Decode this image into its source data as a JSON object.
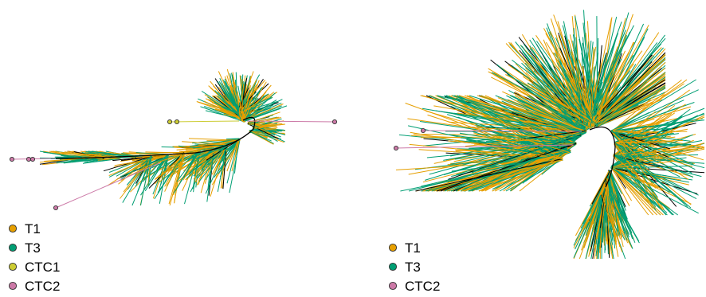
{
  "colors": {
    "T1": "#E69F00",
    "T3": "#009E73",
    "CTC1": "#CCCC33",
    "CTC2": "#CC79A7",
    "trunk": "#000000",
    "marker_outline": "#333333"
  },
  "panels": [
    {
      "name": "left-tree",
      "legend": [
        {
          "key": "T1",
          "label": "T1"
        },
        {
          "key": "T3",
          "label": "T3"
        },
        {
          "key": "CTC1",
          "label": "CTC1"
        },
        {
          "key": "CTC2",
          "label": "CTC2"
        }
      ]
    },
    {
      "name": "right-tree",
      "legend": [
        {
          "key": "T1",
          "label": "T1"
        },
        {
          "key": "T3",
          "label": "T3"
        },
        {
          "key": "CTC2",
          "label": "CTC2"
        }
      ]
    }
  ]
}
